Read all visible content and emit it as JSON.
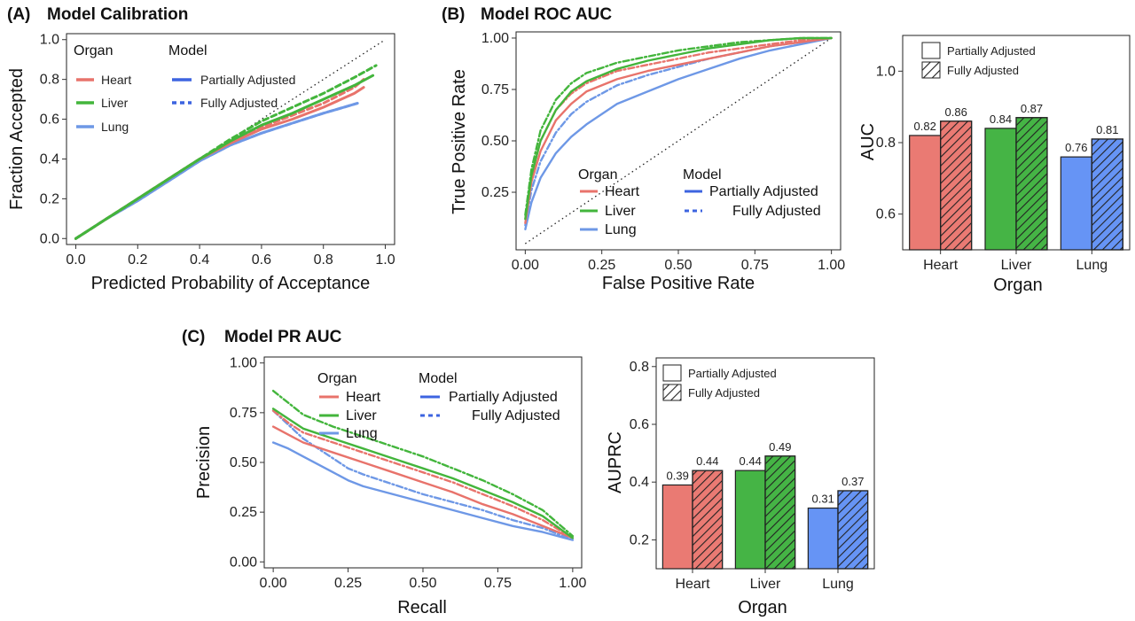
{
  "colors": {
    "Heart": "#e8736b",
    "Liver": "#43b53c",
    "Lung": "#6e98e6",
    "bar_Heart": "#ea7a73",
    "bar_Liver": "#45b445",
    "bar_Lung": "#6694f5"
  },
  "legend": {
    "organ_title": "Organ",
    "model_title": "Model",
    "organs": [
      "Heart",
      "Liver",
      "Lung"
    ],
    "models": [
      "Partially Adjusted",
      "Fully Adjusted"
    ]
  },
  "chart_data": [
    {
      "id": "calibration",
      "type": "line",
      "panel": "(A)",
      "title": "Model Calibration",
      "xlabel": "Predicted Probability of Acceptance",
      "ylabel": "Fraction Accepted",
      "xlim": [
        -0.03,
        1.03
      ],
      "ylim": [
        -0.03,
        1.03
      ],
      "xticks": [
        "0.0",
        "0.2",
        "0.4",
        "0.6",
        "0.8",
        "1.0"
      ],
      "yticks": [
        "0.0",
        "0.2",
        "0.4",
        "0.6",
        "0.8",
        "1.0"
      ],
      "reference_line": "diagonal",
      "series": [
        {
          "name": "Heart",
          "model": "Partially Adjusted",
          "x": [
            0,
            0.1,
            0.2,
            0.3,
            0.4,
            0.5,
            0.6,
            0.7,
            0.8,
            0.9,
            0.93
          ],
          "y": [
            0,
            0.1,
            0.2,
            0.3,
            0.4,
            0.48,
            0.55,
            0.6,
            0.66,
            0.73,
            0.76
          ]
        },
        {
          "name": "Heart",
          "model": "Fully Adjusted",
          "x": [
            0,
            0.1,
            0.2,
            0.3,
            0.4,
            0.5,
            0.6,
            0.7,
            0.8,
            0.9,
            0.93
          ],
          "y": [
            0,
            0.1,
            0.2,
            0.3,
            0.4,
            0.49,
            0.56,
            0.62,
            0.68,
            0.76,
            0.8
          ]
        },
        {
          "name": "Liver",
          "model": "Partially Adjusted",
          "x": [
            0,
            0.1,
            0.2,
            0.3,
            0.4,
            0.5,
            0.6,
            0.7,
            0.8,
            0.9,
            0.96
          ],
          "y": [
            0,
            0.1,
            0.2,
            0.3,
            0.4,
            0.49,
            0.57,
            0.63,
            0.7,
            0.77,
            0.82
          ]
        },
        {
          "name": "Liver",
          "model": "Fully Adjusted",
          "x": [
            0,
            0.1,
            0.2,
            0.3,
            0.4,
            0.5,
            0.6,
            0.7,
            0.8,
            0.9,
            0.97
          ],
          "y": [
            0,
            0.1,
            0.2,
            0.3,
            0.4,
            0.5,
            0.59,
            0.66,
            0.73,
            0.81,
            0.87
          ]
        },
        {
          "name": "Lung",
          "model": "Partially Adjusted",
          "x": [
            0,
            0.1,
            0.2,
            0.3,
            0.4,
            0.5,
            0.6,
            0.7,
            0.8,
            0.91
          ],
          "y": [
            0,
            0.1,
            0.19,
            0.29,
            0.39,
            0.47,
            0.53,
            0.58,
            0.63,
            0.68
          ]
        },
        {
          "name": "Lung",
          "model": "Fully Adjusted",
          "x": [
            0,
            0.1,
            0.2,
            0.3,
            0.4,
            0.5,
            0.6,
            0.7,
            0.8,
            0.91
          ],
          "y": [
            0,
            0.1,
            0.19,
            0.29,
            0.39,
            0.47,
            0.53,
            0.58,
            0.63,
            0.68
          ]
        }
      ]
    },
    {
      "id": "roc",
      "type": "line",
      "panel": "(B)",
      "title": "Model ROC AUC",
      "xlabel": "False Positive Rate",
      "ylabel": "True Positive Rate",
      "xlim": [
        -0.03,
        1.03
      ],
      "ylim": [
        -0.03,
        1.03
      ],
      "xticks": [
        "0.00",
        "0.25",
        "0.50",
        "0.75",
        "1.00"
      ],
      "yticks": [
        "0.25",
        "0.50",
        "0.75",
        "1.00"
      ],
      "reference_line": "diagonal",
      "series": [
        {
          "name": "Heart",
          "model": "Partially Adjusted",
          "x": [
            0,
            0.02,
            0.05,
            0.1,
            0.15,
            0.2,
            0.3,
            0.4,
            0.5,
            0.6,
            0.7,
            0.8,
            0.9,
            1.0
          ],
          "y": [
            0.1,
            0.3,
            0.45,
            0.6,
            0.68,
            0.74,
            0.8,
            0.84,
            0.87,
            0.9,
            0.93,
            0.96,
            0.98,
            1.0
          ]
        },
        {
          "name": "Heart",
          "model": "Fully Adjusted",
          "x": [
            0,
            0.02,
            0.05,
            0.1,
            0.15,
            0.2,
            0.3,
            0.4,
            0.5,
            0.6,
            0.7,
            0.8,
            0.9,
            1.0
          ],
          "y": [
            0.12,
            0.33,
            0.5,
            0.65,
            0.73,
            0.78,
            0.84,
            0.87,
            0.9,
            0.93,
            0.95,
            0.97,
            0.99,
            1.0
          ]
        },
        {
          "name": "Liver",
          "model": "Partially Adjusted",
          "x": [
            0,
            0.02,
            0.05,
            0.1,
            0.15,
            0.2,
            0.3,
            0.4,
            0.5,
            0.6,
            0.7,
            0.8,
            0.9,
            1.0
          ],
          "y": [
            0.12,
            0.33,
            0.5,
            0.65,
            0.74,
            0.79,
            0.85,
            0.89,
            0.92,
            0.95,
            0.97,
            0.99,
            1.0,
            1.0
          ]
        },
        {
          "name": "Liver",
          "model": "Fully Adjusted",
          "x": [
            0,
            0.02,
            0.05,
            0.1,
            0.15,
            0.2,
            0.3,
            0.4,
            0.5,
            0.6,
            0.7,
            0.8,
            0.9,
            1.0
          ],
          "y": [
            0.14,
            0.36,
            0.55,
            0.7,
            0.78,
            0.83,
            0.88,
            0.91,
            0.94,
            0.96,
            0.98,
            0.99,
            1.0,
            1.0
          ]
        },
        {
          "name": "Lung",
          "model": "Partially Adjusted",
          "x": [
            0,
            0.02,
            0.05,
            0.1,
            0.15,
            0.2,
            0.3,
            0.4,
            0.5,
            0.6,
            0.7,
            0.8,
            0.9,
            1.0
          ],
          "y": [
            0.07,
            0.2,
            0.32,
            0.44,
            0.52,
            0.58,
            0.68,
            0.74,
            0.8,
            0.85,
            0.9,
            0.94,
            0.97,
            1.0
          ]
        },
        {
          "name": "Lung",
          "model": "Fully Adjusted",
          "x": [
            0,
            0.02,
            0.05,
            0.1,
            0.15,
            0.2,
            0.3,
            0.4,
            0.5,
            0.6,
            0.7,
            0.8,
            0.9,
            1.0
          ],
          "y": [
            0.09,
            0.26,
            0.4,
            0.54,
            0.63,
            0.69,
            0.77,
            0.82,
            0.86,
            0.9,
            0.93,
            0.96,
            0.98,
            1.0
          ]
        }
      ]
    },
    {
      "id": "auc_bar",
      "type": "bar",
      "xlabel": "Organ",
      "ylabel": "AUC",
      "ylim": [
        0.5,
        1.1
      ],
      "yticks": [
        "0.6",
        "0.8",
        "1.0"
      ],
      "categories": [
        "Heart",
        "Liver",
        "Lung"
      ],
      "series": [
        {
          "name": "Partially Adjusted",
          "values": [
            0.82,
            0.84,
            0.76
          ],
          "labels": [
            "0.82",
            "0.84",
            "0.76"
          ]
        },
        {
          "name": "Fully Adjusted",
          "values": [
            0.86,
            0.87,
            0.81
          ],
          "labels": [
            "0.86",
            "0.87",
            "0.81"
          ]
        }
      ]
    },
    {
      "id": "pr",
      "type": "line",
      "panel": "(C)",
      "title": "Model PR AUC",
      "xlabel": "Recall",
      "ylabel": "Precision",
      "xlim": [
        -0.03,
        1.03
      ],
      "ylim": [
        -0.03,
        1.03
      ],
      "xticks": [
        "0.00",
        "0.25",
        "0.50",
        "0.75",
        "1.00"
      ],
      "yticks": [
        "0.00",
        "0.25",
        "0.50",
        "0.75",
        "1.00"
      ],
      "series": [
        {
          "name": "Heart",
          "model": "Partially Adjusted",
          "x": [
            0,
            0.05,
            0.1,
            0.2,
            0.3,
            0.4,
            0.5,
            0.6,
            0.7,
            0.8,
            0.9,
            1.0
          ],
          "y": [
            0.68,
            0.64,
            0.6,
            0.55,
            0.5,
            0.45,
            0.4,
            0.35,
            0.29,
            0.24,
            0.18,
            0.12
          ]
        },
        {
          "name": "Heart",
          "model": "Fully Adjusted",
          "x": [
            0,
            0.05,
            0.1,
            0.2,
            0.3,
            0.4,
            0.5,
            0.6,
            0.7,
            0.8,
            0.9,
            1.0
          ],
          "y": [
            0.76,
            0.7,
            0.65,
            0.6,
            0.55,
            0.5,
            0.45,
            0.4,
            0.34,
            0.28,
            0.21,
            0.12
          ]
        },
        {
          "name": "Liver",
          "model": "Partially Adjusted",
          "x": [
            0,
            0.05,
            0.1,
            0.2,
            0.3,
            0.4,
            0.5,
            0.6,
            0.7,
            0.8,
            0.9,
            1.0
          ],
          "y": [
            0.77,
            0.72,
            0.67,
            0.62,
            0.57,
            0.52,
            0.47,
            0.42,
            0.36,
            0.3,
            0.23,
            0.12
          ]
        },
        {
          "name": "Liver",
          "model": "Fully Adjusted",
          "x": [
            0,
            0.05,
            0.1,
            0.2,
            0.3,
            0.4,
            0.5,
            0.6,
            0.7,
            0.8,
            0.9,
            1.0
          ],
          "y": [
            0.86,
            0.8,
            0.74,
            0.68,
            0.63,
            0.58,
            0.53,
            0.47,
            0.41,
            0.34,
            0.26,
            0.13
          ]
        },
        {
          "name": "Lung",
          "model": "Partially Adjusted",
          "x": [
            0,
            0.05,
            0.1,
            0.2,
            0.25,
            0.3,
            0.4,
            0.5,
            0.6,
            0.7,
            0.8,
            0.9,
            1.0
          ],
          "y": [
            0.6,
            0.57,
            0.53,
            0.45,
            0.41,
            0.38,
            0.34,
            0.3,
            0.26,
            0.22,
            0.18,
            0.15,
            0.11
          ]
        },
        {
          "name": "Lung",
          "model": "Fully Adjusted",
          "x": [
            0,
            0.05,
            0.1,
            0.2,
            0.25,
            0.3,
            0.4,
            0.5,
            0.6,
            0.7,
            0.8,
            0.9,
            1.0
          ],
          "y": [
            0.76,
            0.69,
            0.62,
            0.52,
            0.47,
            0.44,
            0.39,
            0.34,
            0.3,
            0.26,
            0.21,
            0.17,
            0.11
          ]
        }
      ]
    },
    {
      "id": "auprc_bar",
      "type": "bar",
      "xlabel": "Organ",
      "ylabel": "AUPRC",
      "ylim": [
        0.1,
        0.83
      ],
      "yticks": [
        "0.2",
        "0.4",
        "0.6",
        "0.8"
      ],
      "categories": [
        "Heart",
        "Liver",
        "Lung"
      ],
      "series": [
        {
          "name": "Partially Adjusted",
          "values": [
            0.39,
            0.44,
            0.31
          ],
          "labels": [
            "0.39",
            "0.44",
            "0.31"
          ]
        },
        {
          "name": "Fully Adjusted",
          "values": [
            0.44,
            0.49,
            0.37
          ],
          "labels": [
            "0.44",
            "0.49",
            "0.37"
          ]
        }
      ]
    }
  ]
}
